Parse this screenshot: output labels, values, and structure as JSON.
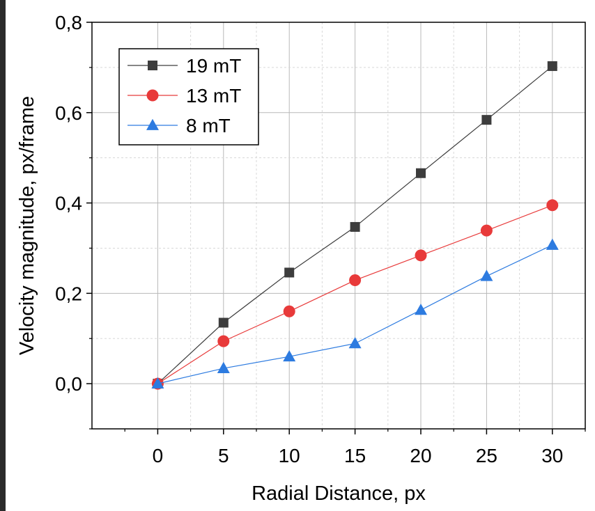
{
  "chart_data": {
    "type": "line",
    "title": "",
    "xlabel": "Radial Distance, px",
    "ylabel": "Velocity magnitude, px/frame",
    "xlim": [
      -5,
      32.5
    ],
    "ylim": [
      -0.1,
      0.8
    ],
    "x": [
      0,
      5,
      10,
      15,
      20,
      25,
      30
    ],
    "x_ticks": [
      "0",
      "5",
      "10",
      "15",
      "20",
      "25",
      "30"
    ],
    "y_ticks": [
      "0,0",
      "0,2",
      "0,4",
      "0,6",
      "0,8"
    ],
    "y_tick_values": [
      0,
      0.2,
      0.4,
      0.6,
      0.8
    ],
    "grid": true,
    "legend_position": "top-left",
    "series": [
      {
        "name": "19 mT",
        "marker": "square",
        "color": "#3d3d3d",
        "line_color": "#3d3d3d",
        "values": [
          0,
          0.135,
          0.246,
          0.347,
          0.466,
          0.584,
          0.703
        ]
      },
      {
        "name": "13 mT",
        "marker": "circle",
        "color": "#e83a3a",
        "line_color": "#e83a3a",
        "values": [
          0,
          0.094,
          0.16,
          0.229,
          0.284,
          0.339,
          0.395
        ]
      },
      {
        "name": "8 mT",
        "marker": "triangle",
        "color": "#2d7be0",
        "line_color": "#2d7be0",
        "values": [
          0,
          0.034,
          0.06,
          0.089,
          0.163,
          0.238,
          0.307
        ]
      }
    ]
  }
}
